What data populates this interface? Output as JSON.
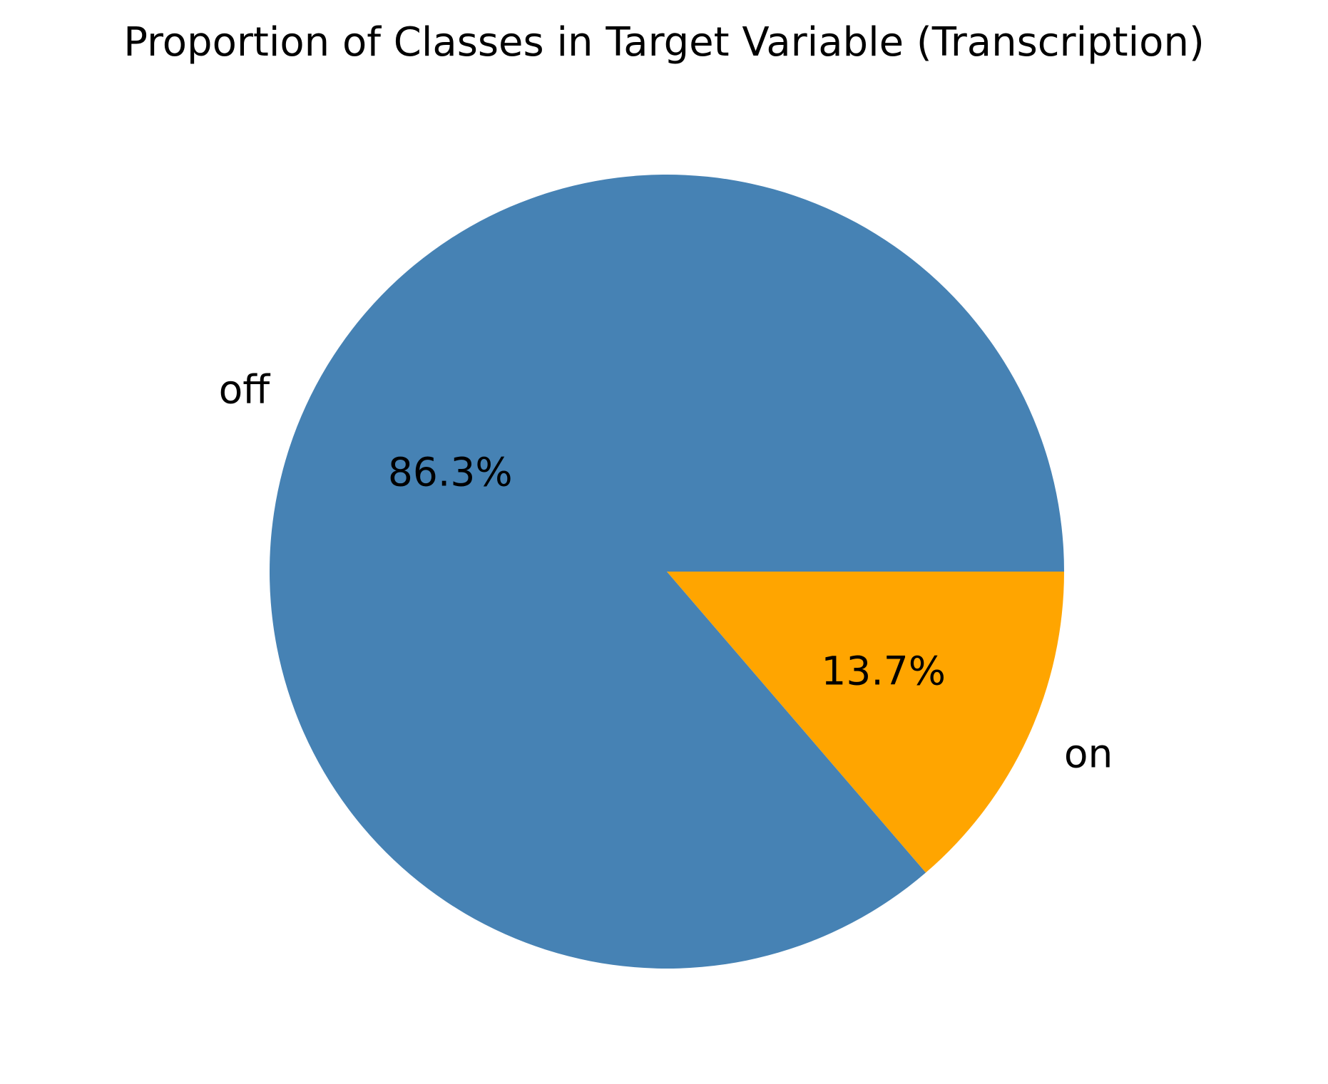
{
  "chart_data": {
    "type": "pie",
    "title": "Proportion of Classes in Target Variable (Transcription)",
    "labels": [
      "off",
      "on"
    ],
    "values": [
      86.3,
      13.7
    ],
    "value_labels": [
      "86.3%",
      "13.7%"
    ],
    "colors": [
      "#4682b4",
      "#ffa500"
    ],
    "start_angle": 0,
    "direction": "counterclockwise"
  }
}
